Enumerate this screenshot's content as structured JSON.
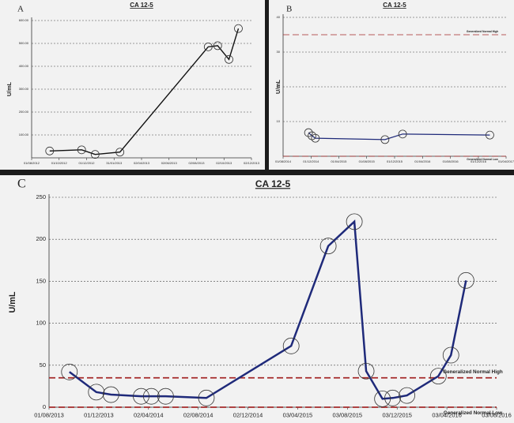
{
  "chart_data": [
    {
      "type": "line",
      "label": "A",
      "title": "CA 12-5",
      "ylabel": "U/mL",
      "color": "#111111",
      "x": [
        "10/09/2012",
        "20/11/2012",
        "20/12/2012",
        "13/02/2013",
        "28/08/2013",
        "18/09/2013",
        "13/10/2013",
        "03/11/2013"
      ],
      "values": [
        30,
        35,
        15,
        25,
        485,
        490,
        430,
        565
      ],
      "xlim": [
        "01/08/2012",
        "02/12/2013"
      ],
      "xticks": [
        "01/08/2012",
        "01/10/2012",
        "01/12/2012",
        "31/01/2013",
        "02/04/2013",
        "02/06/2013",
        "02/08/2013",
        "02/10/2013",
        "02/12/2013"
      ],
      "ylim": [
        0,
        600
      ],
      "yticks": [
        {
          "value": 100,
          "label": "100.00"
        },
        {
          "value": 200,
          "label": "200.00"
        },
        {
          "value": 300,
          "label": "300.00"
        },
        {
          "value": 400,
          "label": "400.00"
        },
        {
          "value": 500,
          "label": "500.00"
        },
        {
          "value": 600,
          "label": "600.00"
        }
      ],
      "grid": true
    },
    {
      "type": "line",
      "label": "B",
      "title": "CA 12-5",
      "ylabel": "U/mL",
      "color": "#1f2a7a",
      "x": [
        "20/11/2014",
        "05/12/2014",
        "20/12/2014",
        "20/10/2015",
        "05/01/2016",
        "20/01/2017"
      ],
      "values": [
        6.8,
        5.9,
        5.2,
        4.8,
        6.4,
        6.1
      ],
      "xlim": [
        "01/08/2014",
        "01/04/2017"
      ],
      "xticks": [
        "01/08/2014",
        "01/12/2014",
        "01/04/2015",
        "01/08/2015",
        "01/12/2015",
        "01/04/2016",
        "01/08/2016",
        "01/12/2016",
        "01/04/2017"
      ],
      "ylim": [
        0,
        40
      ],
      "yticks": [
        10,
        20,
        30,
        40
      ],
      "grid": true,
      "hlines": [
        {
          "value": 35,
          "label": "Generalized Normal High"
        },
        {
          "value": 0,
          "label": "Generalized Normal Low"
        }
      ]
    },
    {
      "type": "line",
      "label": "C",
      "title": "CA 12-5",
      "ylabel": "U/mL",
      "color": "#1f2a7a",
      "x": [
        "20/09/2013",
        "25/11/2013",
        "31/12/2013",
        "15/03/2014",
        "09/04/2014",
        "14/05/2014",
        "22/08/2014",
        "18/03/2015",
        "17/06/2015",
        "20/08/2015",
        "18/09/2015",
        "28/10/2015",
        "22/11/2015",
        "27/12/2015",
        "13/03/2016",
        "13/04/2016",
        "20/05/2016"
      ],
      "values": [
        42,
        18,
        15,
        13,
        13,
        13,
        11,
        73,
        192,
        221,
        43,
        10,
        11,
        14,
        37,
        62,
        151
      ],
      "xlim": [
        "01/08/2013",
        "03/08/2016"
      ],
      "xticks": [
        "01/08/2013",
        "01/12/2013",
        "02/04/2014",
        "02/08/2014",
        "02/12/2014",
        "03/04/2015",
        "03/08/2015",
        "03/12/2015",
        "03/04/2016",
        "03/08/2016"
      ],
      "ylim": [
        0,
        250
      ],
      "yticks": [
        0,
        50,
        100,
        150,
        200,
        250
      ],
      "grid": true,
      "hlines": [
        {
          "value": 35,
          "label": "Generalized Normal High"
        },
        {
          "value": 0,
          "label": "Generalized Normal Low"
        }
      ]
    }
  ]
}
